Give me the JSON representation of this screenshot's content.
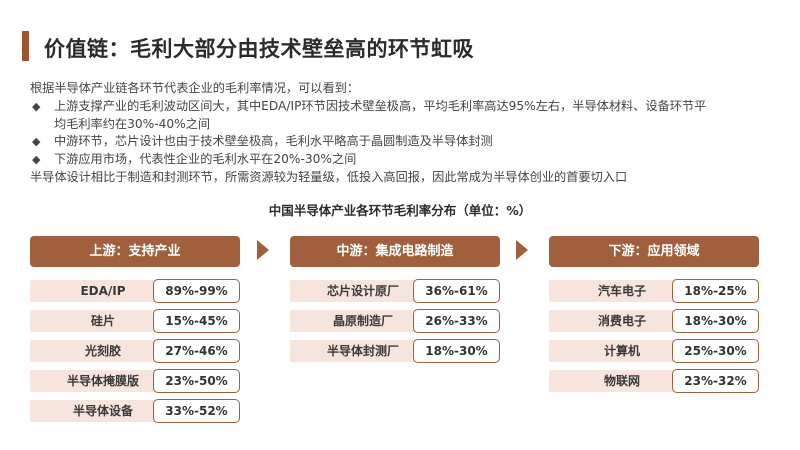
{
  "title": "价值链：毛利大部分由技术壁垒高的环节虹吸",
  "intro": {
    "lead": "根据半导体产业链各环节代表企业的毛利率情况，可以看到：",
    "bullets": [
      {
        "line1": "上游支撑产业的毛利波动区间大，其中EDA/IP环节因技术壁垒极高，平均毛利率高达95%左右，半导体材料、设备环节平",
        "line2": "均毛利率约在30%-40%之间"
      },
      {
        "line1": "中游环节，芯片设计也由于技术壁垒极高，毛利水平略高于晶圆制造及半导体封测"
      },
      {
        "line1": "下游应用市场，代表性企业的毛利水平在20%-30%之间"
      }
    ],
    "bullet_glyph": "◆",
    "closing": "半导体设计相比于制造和封测环节，所需资源较为轻量级，低投入高回报，因此常成为半导体创业的首要切入口"
  },
  "chart_title": "中国半导体产业各环节毛利率分布（单位：%）",
  "columns": [
    {
      "header": "上游：支持产业",
      "rows": [
        {
          "label": "EDA/IP",
          "value": "89%-99%"
        },
        {
          "label": "硅片",
          "value": "15%-45%"
        },
        {
          "label": "光刻胶",
          "value": "27%-46%"
        },
        {
          "label": "半导体掩膜版",
          "value": "23%-50%"
        },
        {
          "label": "半导体设备",
          "value": "33%-52%"
        }
      ]
    },
    {
      "header": "中游：集成电路制造",
      "rows": [
        {
          "label": "芯片设计原厂",
          "value": "36%-61%"
        },
        {
          "label": "晶原制造厂",
          "value": "26%-33%"
        },
        {
          "label": "半导体封测厂",
          "value": "18%-30%"
        }
      ]
    },
    {
      "header": "下游：应用领域",
      "rows": [
        {
          "label": "汽车电子",
          "value": "18%-25%"
        },
        {
          "label": "消费电子",
          "value": "18%-30%"
        },
        {
          "label": "计算机",
          "value": "25%-30%"
        },
        {
          "label": "物联网",
          "value": "23%-32%"
        }
      ]
    }
  ],
  "colors": {
    "accent": "#a0603d",
    "title_bar": "#a0522d",
    "label_bg": "#f7e4dc"
  }
}
